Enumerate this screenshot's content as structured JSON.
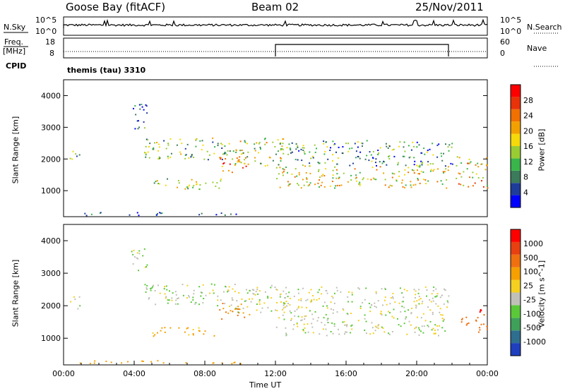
{
  "header": {
    "station": "Goose Bay (fitACF)",
    "beam": "Beam 02",
    "date": "25/Nov/2011"
  },
  "aux_panels": {
    "nsky_label": "N.Sky",
    "nsearch_label": "N.Search",
    "noise_ticks": [
      "10^5",
      "10^0"
    ],
    "noise_ticks_right": [
      "10^5",
      "10^0"
    ],
    "freq_label_line1": "Freq.",
    "freq_label_line2": "[MHz]",
    "freq_ticks": [
      "18",
      "8"
    ],
    "nave_label": "Nave",
    "nave_ticks": [
      "60",
      "0"
    ],
    "cpid_label": "CPID",
    "cpid_value": "themis (tau) 3310"
  },
  "chart_data": [
    {
      "type": "heatmap",
      "name": "power",
      "ylabel": "Slant Range [km]",
      "ylim": [
        180,
        4500
      ],
      "yticks": [
        1000,
        2000,
        3000,
        4000
      ],
      "xlim": [
        0,
        24
      ],
      "colorbar_label": "Power [dB]",
      "colorbar_ticks": [
        "28",
        "24",
        "20",
        "16",
        "12",
        "8",
        "4"
      ],
      "colors": [
        "#0000ff",
        "#1e3c99",
        "#3b7a5a",
        "#39b54a",
        "#99cc33",
        "#f5d90a",
        "#f2a000",
        "#f07000",
        "#e8320a",
        "#ff0000"
      ],
      "features": [
        {
          "t0": 0.2,
          "t1": 0.9,
          "r0": 1900,
          "r1": 2300,
          "level": 0.35
        },
        {
          "t0": 3.8,
          "t1": 4.7,
          "r0": 2900,
          "r1": 3800,
          "level": 0.2
        },
        {
          "t0": 4.5,
          "t1": 9.5,
          "r0": 2000,
          "r1": 2700,
          "level": 0.4
        },
        {
          "t0": 5.0,
          "t1": 9.0,
          "r0": 1050,
          "r1": 1400,
          "level": 0.45
        },
        {
          "t0": 8.8,
          "t1": 10.6,
          "r0": 1600,
          "r1": 2100,
          "level": 0.75
        },
        {
          "t0": 9.5,
          "t1": 12.5,
          "r0": 1800,
          "r1": 2700,
          "level": 0.5
        },
        {
          "t0": 12.0,
          "t1": 21.8,
          "r0": 1100,
          "r1": 1800,
          "level": 0.55
        },
        {
          "t0": 12.0,
          "t1": 22.0,
          "r0": 1800,
          "r1": 2600,
          "level": 0.3
        },
        {
          "t0": 22.2,
          "t1": 24.0,
          "r0": 1100,
          "r1": 2100,
          "level": 0.6
        },
        {
          "t0": 0.5,
          "t1": 10.0,
          "r0": 230,
          "r1": 330,
          "level": 0.15
        }
      ]
    },
    {
      "type": "heatmap",
      "name": "velocity",
      "ylabel": "Slant Range [km]",
      "ylim": [
        180,
        4500
      ],
      "yticks": [
        1000,
        2000,
        3000,
        4000
      ],
      "xlim": [
        0,
        24
      ],
      "xticks": [
        "00:00",
        "04:00",
        "08:00",
        "12:00",
        "16:00",
        "20:00",
        "00:00"
      ],
      "xlabel": "Time UT",
      "colorbar_label": "Velocity [m s^-1]",
      "colorbar_ticks": [
        "1000",
        "500",
        "100",
        "25",
        "-25",
        "-100",
        "-500",
        "-1000"
      ],
      "colors": [
        "#1f3fbf",
        "#2e6e8e",
        "#3fa05a",
        "#5bc83a",
        "#c0c0b8",
        "#f5d020",
        "#f5a000",
        "#f07010",
        "#e84010",
        "#ff0000"
      ],
      "features": [
        {
          "t0": 0.2,
          "t1": 0.9,
          "r0": 1900,
          "r1": 2300,
          "v": 0
        },
        {
          "t0": 3.8,
          "t1": 4.7,
          "r0": 3000,
          "r1": 3800,
          "v": 0
        },
        {
          "t0": 4.5,
          "t1": 9.5,
          "r0": 2000,
          "r1": 2700,
          "v": 0
        },
        {
          "t0": 5.0,
          "t1": 8.5,
          "r0": 1050,
          "r1": 1350,
          "v": -150
        },
        {
          "t0": 8.8,
          "t1": 10.6,
          "r0": 1600,
          "r1": 2100,
          "v": -300
        },
        {
          "t0": 9.5,
          "t1": 12.5,
          "r0": 1800,
          "r1": 2700,
          "v": 0
        },
        {
          "t0": 12.0,
          "t1": 21.8,
          "r0": 1100,
          "r1": 2600,
          "v": 0
        },
        {
          "t0": 22.5,
          "t1": 24.0,
          "r0": 1200,
          "r1": 1800,
          "v": -400
        },
        {
          "t0": 23.5,
          "t1": 24.0,
          "r0": 1500,
          "r1": 1900,
          "v": -900
        },
        {
          "t0": 0.5,
          "t1": 10.0,
          "r0": 230,
          "r1": 330,
          "v": -150
        }
      ]
    }
  ]
}
